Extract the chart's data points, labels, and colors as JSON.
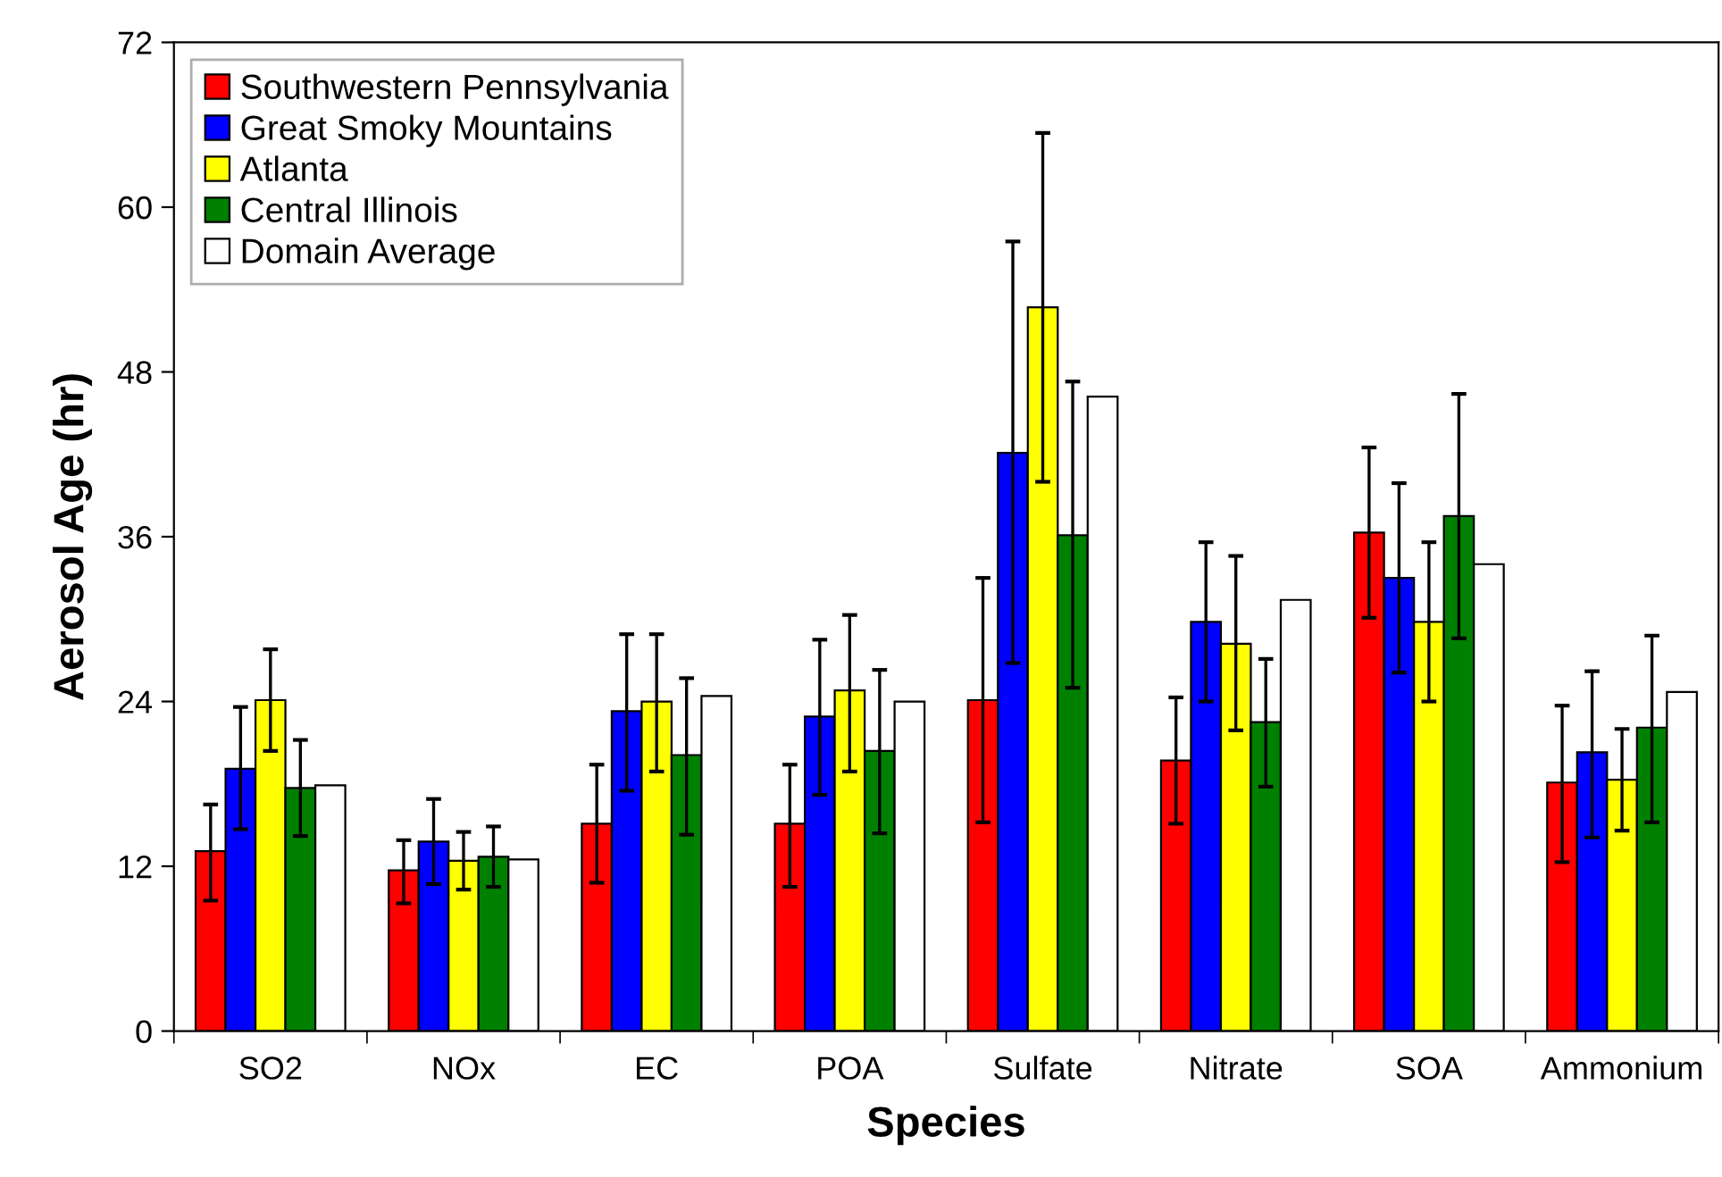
{
  "chart_data": {
    "type": "bar",
    "xlabel": "Species",
    "ylabel": "Aerosol Age (hr)",
    "categories": [
      "SO2",
      "NOx",
      "EC",
      "POA",
      "Sulfate",
      "Nitrate",
      "SOA",
      "Ammonium"
    ],
    "ylim": [
      0,
      72
    ],
    "yticks": [
      0,
      12,
      24,
      36,
      48,
      60,
      72
    ],
    "grid": false,
    "legend": "top left",
    "series": [
      {
        "name": "Southwestern Pennsylvania",
        "color": "#ff0000",
        "values": [
          13.1,
          11.7,
          15.1,
          15.1,
          24.1,
          19.7,
          36.3,
          18.1
        ],
        "errors": [
          [
            9.5,
            16.5
          ],
          [
            9.3,
            13.9
          ],
          [
            10.8,
            19.4
          ],
          [
            10.5,
            19.4
          ],
          [
            15.2,
            33.0
          ],
          [
            15.1,
            24.3
          ],
          [
            30.1,
            42.5
          ],
          [
            12.3,
            23.7
          ]
        ]
      },
      {
        "name": "Great Smoky Mountains",
        "color": "#0000ff",
        "values": [
          19.1,
          13.8,
          23.3,
          22.9,
          42.1,
          29.8,
          33.0,
          20.3
        ],
        "errors": [
          [
            14.7,
            23.6
          ],
          [
            10.7,
            16.9
          ],
          [
            17.5,
            28.9
          ],
          [
            17.2,
            28.5
          ],
          [
            26.8,
            57.5
          ],
          [
            24.0,
            35.6
          ],
          [
            26.1,
            39.9
          ],
          [
            14.1,
            26.2
          ]
        ]
      },
      {
        "name": "Atlanta",
        "color": "#ffff00",
        "values": [
          24.1,
          12.4,
          24.0,
          24.8,
          52.7,
          28.2,
          29.8,
          18.3
        ],
        "errors": [
          [
            20.4,
            27.8
          ],
          [
            10.3,
            14.5
          ],
          [
            18.9,
            28.9
          ],
          [
            18.9,
            30.3
          ],
          [
            40.0,
            65.4
          ],
          [
            21.9,
            34.6
          ],
          [
            24.0,
            35.6
          ],
          [
            14.6,
            22.0
          ]
        ]
      },
      {
        "name": "Central Illinois",
        "color": "#008000",
        "values": [
          17.7,
          12.7,
          20.1,
          20.4,
          36.1,
          22.5,
          37.5,
          22.1
        ],
        "errors": [
          [
            14.2,
            21.2
          ],
          [
            10.5,
            14.9
          ],
          [
            14.3,
            25.7
          ],
          [
            14.4,
            26.3
          ],
          [
            25.0,
            47.3
          ],
          [
            17.8,
            27.1
          ],
          [
            28.6,
            46.4
          ],
          [
            15.2,
            28.8
          ]
        ]
      },
      {
        "name": "Domain Average",
        "color": "#ffffff",
        "values": [
          17.9,
          12.5,
          24.4,
          24.0,
          46.2,
          31.4,
          34.0,
          24.7
        ]
      }
    ]
  }
}
